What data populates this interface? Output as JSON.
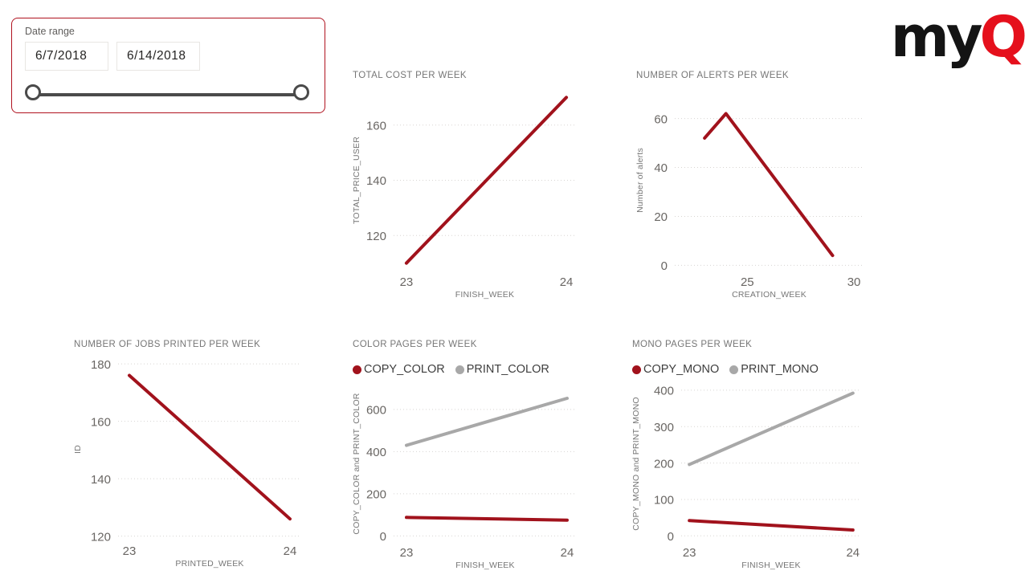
{
  "logo": {
    "prefix": "my",
    "suffix": "Q"
  },
  "date_slicer": {
    "label": "Date range",
    "start_date": "6/7/2018",
    "end_date": "6/14/2018"
  },
  "colors": {
    "accent_red": "#A1121C",
    "series_gray": "#A8A8A8",
    "slicer_border": "#B0121F",
    "logo_black": "#141414",
    "logo_red": "#E5101C"
  },
  "chart_data": [
    {
      "type": "line",
      "title": "TOTAL COST PER WEEK",
      "xlabel": "FINISH_WEEK",
      "ylabel": "TOTAL_PRICE_USER",
      "xlim": [
        22.92,
        24.06
      ],
      "ylim": [
        107,
        173
      ],
      "xticks": [
        23,
        24
      ],
      "yticks": [
        120,
        140,
        160
      ],
      "grid": "horizontal-dotted",
      "legend": null,
      "series": [
        {
          "name": "TOTAL_PRICE_USER",
          "color": "red",
          "x": [
            23,
            24
          ],
          "y": [
            110,
            170
          ]
        }
      ]
    },
    {
      "type": "line",
      "title": "NUMBER OF ALERTS PER WEEK",
      "xlabel": "CREATION_WEEK",
      "ylabel": "Number of alerts",
      "xlim": [
        21.6,
        30.45
      ],
      "ylim": [
        -2.5,
        72
      ],
      "xticks": [
        25,
        30
      ],
      "yticks": [
        0,
        20,
        40,
        60
      ],
      "grid": "horizontal-dotted",
      "legend": null,
      "series": [
        {
          "name": "Number of alerts",
          "color": "red",
          "x": [
            23,
            24,
            29
          ],
          "y": [
            52,
            62,
            4
          ]
        }
      ]
    },
    {
      "type": "line",
      "title": "NUMBER OF JOBS PRINTED PER WEEK",
      "xlabel": "PRINTED_WEEK",
      "ylabel": "ID",
      "xlim": [
        22.93,
        24.07
      ],
      "ylim": [
        118.5,
        182
      ],
      "xticks": [
        23,
        24
      ],
      "yticks": [
        120,
        140,
        160,
        180
      ],
      "grid": "horizontal-dotted",
      "legend": null,
      "series": [
        {
          "name": "ID",
          "color": "red",
          "x": [
            23,
            24
          ],
          "y": [
            176,
            126
          ]
        }
      ]
    },
    {
      "type": "line",
      "title": "COLOR PAGES PER WEEK",
      "xlabel": "FINISH_WEEK",
      "ylabel": "COPY_COLOR and PRINT_COLOR",
      "xlim": [
        22.92,
        24.06
      ],
      "ylim": [
        -29,
        714
      ],
      "xticks": [
        23,
        24
      ],
      "yticks": [
        0,
        200,
        400,
        600
      ],
      "grid": "horizontal-dotted",
      "legend": [
        {
          "label": "COPY_COLOR",
          "color": "red"
        },
        {
          "label": "PRINT_COLOR",
          "color": "gray"
        }
      ],
      "series": [
        {
          "name": "COPY_COLOR",
          "color": "red",
          "x": [
            23,
            24
          ],
          "y": [
            88,
            75
          ]
        },
        {
          "name": "PRINT_COLOR",
          "color": "gray",
          "x": [
            23,
            24
          ],
          "y": [
            430,
            653
          ]
        }
      ]
    },
    {
      "type": "line",
      "title": "MONO PAGES PER WEEK",
      "xlabel": "FINISH_WEEK",
      "ylabel": "COPY_MONO and PRINT_MONO",
      "xlim": [
        22.95,
        24.05
      ],
      "ylim": [
        -17,
        413
      ],
      "xticks": [
        23,
        24
      ],
      "yticks": [
        0,
        100,
        200,
        300,
        400
      ],
      "grid": "horizontal-dotted",
      "legend": [
        {
          "label": "COPY_MONO",
          "color": "red"
        },
        {
          "label": "PRINT_MONO",
          "color": "gray"
        }
      ],
      "series": [
        {
          "name": "COPY_MONO",
          "color": "red",
          "x": [
            23,
            24
          ],
          "y": [
            42,
            16
          ]
        },
        {
          "name": "PRINT_MONO",
          "color": "gray",
          "x": [
            23,
            24
          ],
          "y": [
            196,
            392
          ]
        }
      ]
    }
  ]
}
